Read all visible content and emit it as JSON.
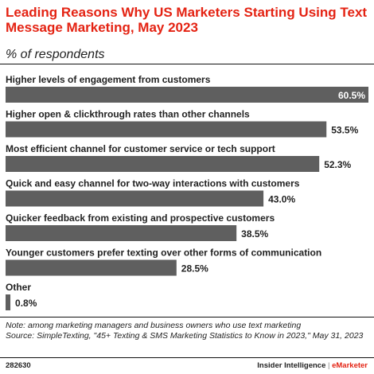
{
  "header": {
    "title": "Leading Reasons Why US Marketers Starting Using Text Message Marketing, May 2023",
    "subtitle": "% of respondents"
  },
  "chart_data": {
    "type": "bar",
    "orientation": "horizontal",
    "title": "Leading Reasons Why US Marketers Starting Using Text Message Marketing, May 2023",
    "subtitle": "% of respondents",
    "categories": [
      "Higher levels of engagement from customers",
      "Higher open & clickthrough rates than other channels",
      "Most efficient channel for customer service or tech support",
      "Quick and easy channel for two-way interactions with customers",
      "Quicker feedback from existing and prospective customers",
      "Younger customers prefer texting over other forms of communication",
      "Other"
    ],
    "values": [
      60.5,
      53.5,
      52.3,
      43.0,
      38.5,
      28.5,
      0.8
    ],
    "value_labels": [
      "60.5%",
      "53.5%",
      "52.3%",
      "43.0%",
      "38.5%",
      "28.5%",
      "0.8%"
    ],
    "xlim": [
      0,
      60.5
    ],
    "grid": false,
    "bar_color": "#5f5f5f"
  },
  "footer": {
    "note": "Note: among marketing managers and business owners who use text marketing",
    "source": "Source: SimpleTexting, \"45+ Texting & SMS Marketing Statistics to Know in 2023,\" May 31, 2023",
    "chart_id": "282630",
    "brand_left": "Insider Intelligence",
    "brand_sep": "|",
    "brand_right": "eMarketer"
  },
  "colors": {
    "accent": "#e42313",
    "bar": "#5f5f5f",
    "text": "#222222"
  }
}
